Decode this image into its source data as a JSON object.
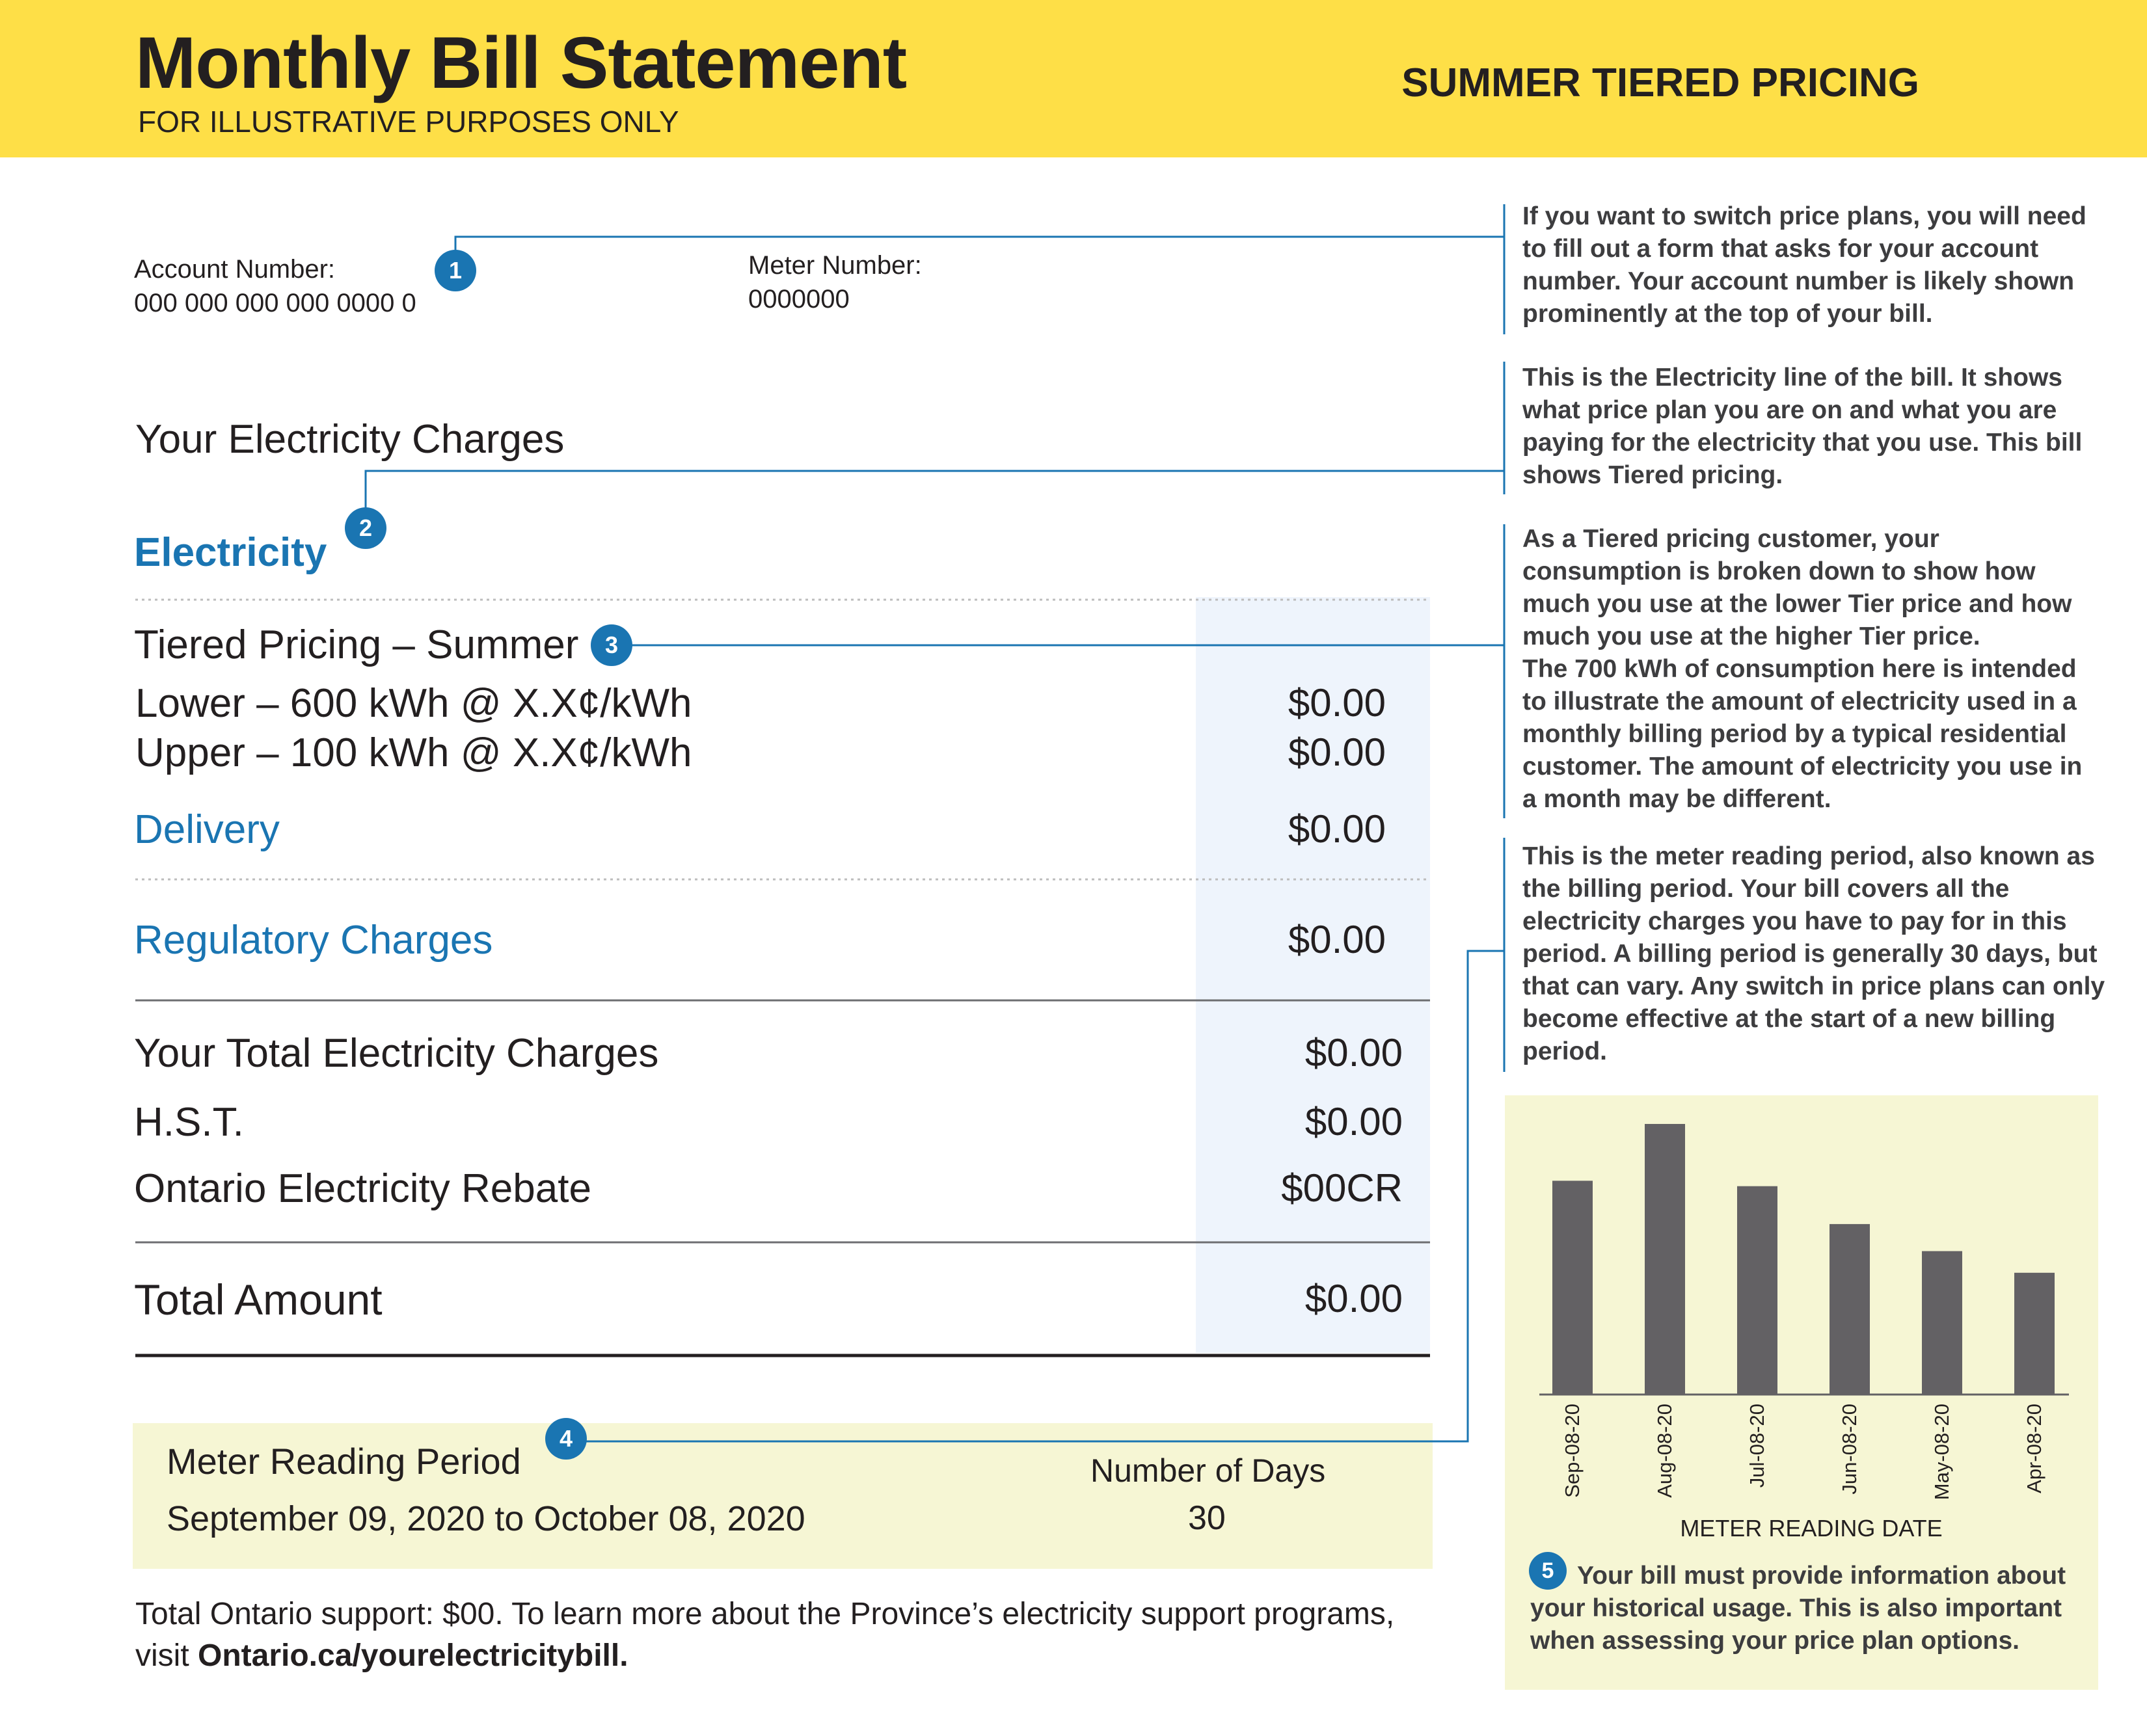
{
  "header": {
    "title": "Monthly Bill Statement",
    "subtitle": "FOR ILLUSTRATIVE PURPOSES ONLY",
    "pricing_label": "SUMMER TIERED PRICING"
  },
  "account": {
    "account_label": "Account Number:",
    "account_value": "000 000 000 000 0000 0",
    "meter_label": "Meter Number:",
    "meter_value": "0000000"
  },
  "charges": {
    "heading": "Your Electricity Charges",
    "electricity_label": "Electricity",
    "tier_heading": "Tiered Pricing – Summer",
    "lower_label": "Lower – 600 kWh @ X.X¢/kWh",
    "lower_amount": "$0.00",
    "upper_label": "Upper – 100 kWh @ X.X¢/kWh",
    "upper_amount": "$0.00",
    "delivery_label": "Delivery",
    "delivery_amount": "$0.00",
    "regulatory_label": "Regulatory Charges",
    "regulatory_amount": "$0.00",
    "total_electricity_label": "Your Total Electricity Charges",
    "total_electricity_amount": "$0.00",
    "hst_label": "H.S.T.",
    "hst_amount": "$0.00",
    "rebate_label": "Ontario Electricity Rebate",
    "rebate_amount": "$00CR",
    "total_amount_label": "Total Amount",
    "total_amount_value": "$0.00"
  },
  "meter_reading": {
    "period_label": "Meter Reading Period",
    "period_value": "September 09, 2020 to October 08, 2020",
    "days_label": "Number of Days",
    "days_value": "30"
  },
  "footer": {
    "line1": "Total Ontario support: $00. To learn more about the Province’s electricity support programs,",
    "line2_prefix": "visit ",
    "link": "Ontario.ca/yourelectricitybill."
  },
  "badges": [
    "1",
    "2",
    "3",
    "4",
    "5"
  ],
  "callouts": {
    "c1": "If you want to switch price plans, you will need to fill out a form that asks for your account number. Your account number is likely shown prominently at the top of your bill.",
    "c2": "This is the Electricity line of the bill. It shows what price plan you are on and what you are paying for the electricity that you use. This bill shows Tiered pricing.",
    "c3a": "As a Tiered pricing customer, your consumption is broken down to show how much you use at the lower Tier price and how much you use at the higher Tier price.",
    "c3b": "The 700 kWh of consumption here is intended to illustrate the amount of electricity used in a monthly billing period by a typical residential customer. The amount of electricity you use in a month may be different.",
    "c4": "This is the meter reading period, also known as the billing period. Your bill covers all the electricity charges you have to pay for in this period. A billing period is generally 30 days, but that can vary. Any switch in price plans can only become effective at the start of a new billing period.",
    "c5": "Your bill must provide information about your historical usage. This is also important when assessing your price plan options."
  },
  "colors": {
    "header_yellow": "#fedf47",
    "accent_blue": "#1a75b2",
    "chart_bg": "#f6f6d4",
    "bar_gray": "#636164",
    "amount_column": "#eef4fc"
  },
  "chart_data": {
    "type": "bar",
    "categories": [
      "Sep-08-20",
      "Aug-08-20",
      "Jul-08-20",
      "Jun-08-20",
      "May-08-20",
      "Apr-08-20"
    ],
    "values": [
      0.79,
      1.0,
      0.77,
      0.63,
      0.53,
      0.45
    ],
    "xlabel": "METER READING DATE",
    "ylabel": "",
    "title": "",
    "grid": false
  }
}
